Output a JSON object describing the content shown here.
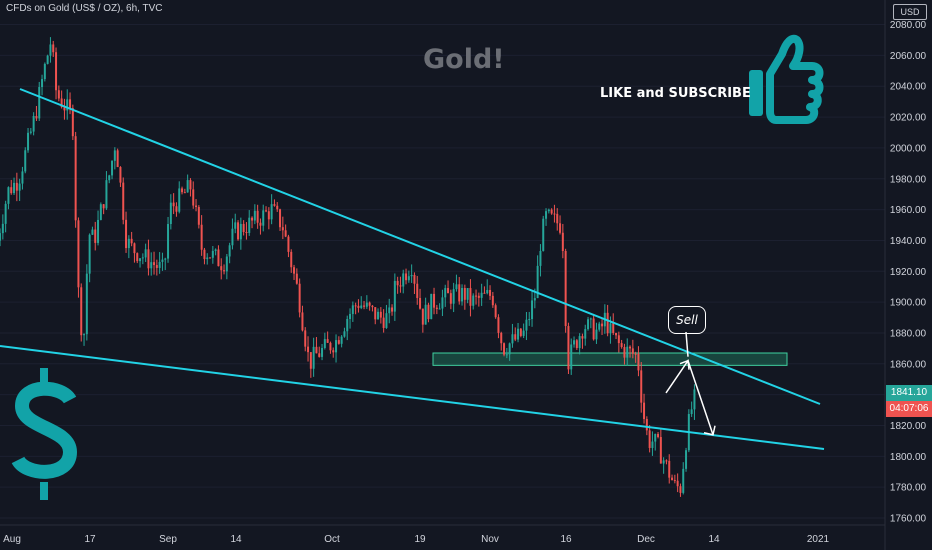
{
  "header": {
    "title": "CFDs on Gold (US$ / OZ), 6h, TVC"
  },
  "axis": {
    "currency": "USD"
  },
  "overlay": {
    "title": "Gold!",
    "cta": "LIKE and SUBSCRIBE",
    "sell_label": "Sell",
    "icons": [
      "thumbs-up-icon",
      "dollar-sign-icon"
    ]
  },
  "price_tags": {
    "last": "1841.10",
    "countdown": "04:07:06"
  },
  "colors": {
    "background": "#131722",
    "up": "#26a69a",
    "down": "#ef5350",
    "trendline": "#22d3e6",
    "accent": "#12a3a8",
    "zone": "#1e6b55"
  },
  "chart_data": {
    "type": "candlestick",
    "symbol": "CFDs on Gold (US$ / OZ)",
    "timeframe": "6h",
    "ylim": [
      1755,
      2090
    ],
    "y_ticks": [
      1760,
      1780,
      1800,
      1820,
      1840,
      1860,
      1880,
      1900,
      1920,
      1940,
      1960,
      1980,
      2000,
      2020,
      2040,
      2060,
      2080
    ],
    "x_ticks": [
      "Aug",
      "17",
      "Sep",
      "14",
      "Oct",
      "19",
      "Nov",
      "16",
      "Dec",
      "14",
      "2021"
    ],
    "price_path": [
      [
        "Jul 27",
        1940
      ],
      [
        "Jul 29",
        1972
      ],
      [
        "Jul 31",
        1980
      ],
      [
        "Aug 3",
        2020
      ],
      [
        "Aug 5",
        2055
      ],
      [
        "Aug 6",
        2070
      ],
      [
        "Aug 7",
        2035
      ],
      [
        "Aug 10",
        2020
      ],
      [
        "Aug 11",
        1910
      ],
      [
        "Aug 12",
        1870
      ],
      [
        "Aug 13",
        1945
      ],
      [
        "Aug 14",
        1940
      ],
      [
        "Aug 17",
        1985
      ],
      [
        "Aug 18",
        2005
      ],
      [
        "Aug 20",
        1940
      ],
      [
        "Aug 21",
        1935
      ],
      [
        "Aug 25",
        1925
      ],
      [
        "Aug 27",
        1920
      ],
      [
        "Aug 28",
        1960
      ],
      [
        "Sep 1",
        1975
      ],
      [
        "Sep 3",
        1935
      ],
      [
        "Sep 7",
        1925
      ],
      [
        "Sep 9",
        1945
      ],
      [
        "Sep 14",
        1955
      ],
      [
        "Sep 16",
        1960
      ],
      [
        "Sep 18",
        1950
      ],
      [
        "Sep 21",
        1905
      ],
      [
        "Sep 23",
        1860
      ],
      [
        "Sep 24",
        1865
      ],
      [
        "Sep 28",
        1875
      ],
      [
        "Sep 30",
        1890
      ],
      [
        "Oct 2",
        1900
      ],
      [
        "Oct 6",
        1890
      ],
      [
        "Oct 8",
        1890
      ],
      [
        "Oct 9",
        1910
      ],
      [
        "Oct 12",
        1925
      ],
      [
        "Oct 14",
        1890
      ],
      [
        "Oct 16",
        1900
      ],
      [
        "Oct 20",
        1905
      ],
      [
        "Oct 22",
        1905
      ],
      [
        "Oct 23",
        1900
      ],
      [
        "Oct 27",
        1905
      ],
      [
        "Oct 29",
        1870
      ],
      [
        "Nov 2",
        1880
      ],
      [
        "Nov 4",
        1905
      ],
      [
        "Nov 5",
        1940
      ],
      [
        "Nov 6",
        1955
      ],
      [
        "Nov 9",
        1950
      ],
      [
        "Nov 10",
        1860
      ],
      [
        "Nov 11",
        1870
      ],
      [
        "Nov 13",
        1885
      ],
      [
        "Nov 16",
        1880
      ],
      [
        "Nov 17",
        1890
      ],
      [
        "Nov 18",
        1880
      ],
      [
        "Nov 20",
        1870
      ],
      [
        "Nov 23",
        1865
      ],
      [
        "Nov 24",
        1830
      ],
      [
        "Nov 25",
        1810
      ],
      [
        "Nov 26",
        1810
      ],
      [
        "Nov 27",
        1805
      ],
      [
        "Nov 30",
        1780
      ],
      [
        "Dec 1",
        1780
      ],
      [
        "Dec 2",
        1810
      ],
      [
        "Dec 3",
        1830
      ],
      [
        "Dec 4",
        1841.1
      ]
    ],
    "annotations": {
      "upper_trendline": [
        [
          "Jul 27",
          2037
        ],
        [
          "Dec 31",
          1833
        ]
      ],
      "lower_trendline": [
        [
          "Jul 27",
          1872
        ],
        [
          "Dec 31",
          1804
        ]
      ],
      "resistance_zone": {
        "x": [
          "Oct 17",
          "Dec 27"
        ],
        "y": [
          1859,
          1867
        ]
      },
      "projection": [
        [
          "Dec 4",
          1841.1
        ],
        [
          "Dec 9",
          1862
        ],
        [
          "Dec 14",
          1814
        ]
      ],
      "sell_label": "Sell"
    },
    "last_price": 1841.1
  }
}
